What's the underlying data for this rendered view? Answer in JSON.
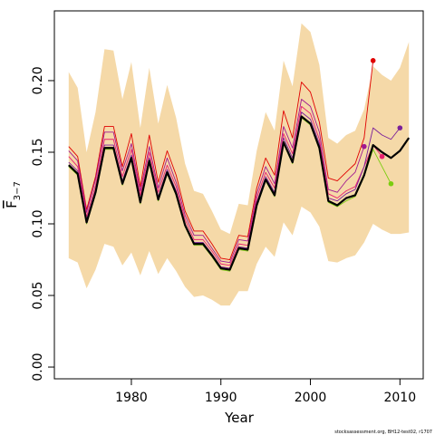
{
  "chart_data": {
    "type": "line",
    "xlabel": "Year",
    "ylabel": {
      "symbol": "F",
      "subscript": "3−7"
    },
    "footer": "stocksassessment.org, BH12-test02, r1707",
    "x": [
      1973,
      1974,
      1975,
      1976,
      1977,
      1978,
      1979,
      1980,
      1981,
      1982,
      1983,
      1984,
      1985,
      1986,
      1987,
      1988,
      1989,
      1990,
      1991,
      1992,
      1993,
      1994,
      1995,
      1996,
      1997,
      1998,
      1999,
      2000,
      2001,
      2002,
      2003,
      2004,
      2005,
      2006,
      2007,
      2008,
      2009,
      2010,
      2011
    ],
    "xlim": [
      1971.4,
      2012.6
    ],
    "xticks": [
      1980,
      1990,
      2000,
      2010
    ],
    "ylim": [
      -0.0082,
      0.2487
    ],
    "yticks": [
      {
        "value": 0,
        "label": "0.00"
      },
      {
        "value": 0.05,
        "label": "0.05"
      },
      {
        "value": 0.1,
        "label": "0.10"
      },
      {
        "value": 0.15,
        "label": "0.15"
      },
      {
        "value": 0.2,
        "label": "0.20"
      }
    ],
    "band": {
      "color": "#f5d9a8",
      "upper": [
        0.206,
        0.195,
        0.15,
        0.178,
        0.222,
        0.221,
        0.187,
        0.213,
        0.167,
        0.209,
        0.17,
        0.197,
        0.174,
        0.142,
        0.123,
        0.121,
        0.109,
        0.096,
        0.093,
        0.114,
        0.113,
        0.151,
        0.178,
        0.165,
        0.214,
        0.196,
        0.24,
        0.234,
        0.211,
        0.16,
        0.156,
        0.162,
        0.165,
        0.18,
        0.21,
        0.204,
        0.2,
        0.209,
        0.227
      ],
      "lower": [
        0.076,
        0.073,
        0.055,
        0.068,
        0.086,
        0.084,
        0.071,
        0.08,
        0.064,
        0.081,
        0.065,
        0.076,
        0.067,
        0.056,
        0.049,
        0.05,
        0.047,
        0.043,
        0.043,
        0.053,
        0.053,
        0.072,
        0.084,
        0.077,
        0.101,
        0.092,
        0.112,
        0.108,
        0.098,
        0.074,
        0.073,
        0.076,
        0.078,
        0.087,
        0.1,
        0.096,
        0.093,
        0.093,
        0.094
      ]
    },
    "series": [
      {
        "color": "#e00000",
        "end_marker": true,
        "values": [
          0.154,
          0.147,
          0.11,
          0.133,
          0.168,
          0.168,
          0.14,
          0.163,
          0.126,
          0.162,
          0.129,
          0.151,
          0.134,
          0.109,
          0.095,
          0.095,
          0.086,
          0.076,
          0.075,
          0.092,
          0.091,
          0.125,
          0.146,
          0.134,
          0.179,
          0.16,
          0.199,
          0.192,
          0.171,
          0.132,
          0.13,
          0.136,
          0.142,
          0.16,
          0.214,
          null,
          null,
          null,
          null
        ]
      },
      {
        "color": "#a01890",
        "end_marker": true,
        "values": [
          0.151,
          0.144,
          0.108,
          0.131,
          0.164,
          0.164,
          0.137,
          0.156,
          0.123,
          0.154,
          0.125,
          0.146,
          0.129,
          0.106,
          0.092,
          0.092,
          0.083,
          0.074,
          0.073,
          0.089,
          0.088,
          0.121,
          0.14,
          0.128,
          0.168,
          0.153,
          0.187,
          0.182,
          0.164,
          0.124,
          0.122,
          0.13,
          0.136,
          0.154,
          null,
          null,
          null,
          null,
          null
        ]
      },
      {
        "color": "#e8206e",
        "end_marker": true,
        "values": [
          0.147,
          0.14,
          0.105,
          0.127,
          0.159,
          0.159,
          0.133,
          0.152,
          0.12,
          0.15,
          0.122,
          0.141,
          0.126,
          0.103,
          0.089,
          0.089,
          0.081,
          0.072,
          0.071,
          0.086,
          0.085,
          0.118,
          0.136,
          0.125,
          0.163,
          0.149,
          0.182,
          0.177,
          0.159,
          0.121,
          0.118,
          0.123,
          0.126,
          0.14,
          0.155,
          0.147,
          null,
          null,
          null
        ]
      },
      {
        "color": "#7a1f9a",
        "end_marker": true,
        "values": [
          0.143,
          0.137,
          0.103,
          0.124,
          0.155,
          0.155,
          0.13,
          0.148,
          0.117,
          0.146,
          0.119,
          0.138,
          0.123,
          0.1,
          0.087,
          0.087,
          0.079,
          0.07,
          0.069,
          0.084,
          0.083,
          0.115,
          0.133,
          0.122,
          0.16,
          0.146,
          0.178,
          0.173,
          0.156,
          0.118,
          0.116,
          0.121,
          0.124,
          0.14,
          0.167,
          0.162,
          0.159,
          0.167,
          null
        ]
      },
      {
        "color": "#7ccd10",
        "end_marker": true,
        "values": [
          0.14,
          0.134,
          0.1,
          0.121,
          0.152,
          0.152,
          0.127,
          0.145,
          0.114,
          0.143,
          0.116,
          0.135,
          0.12,
          0.098,
          0.085,
          0.085,
          0.077,
          0.068,
          0.067,
          0.082,
          0.081,
          0.112,
          0.13,
          0.119,
          0.156,
          0.142,
          0.174,
          0.169,
          0.152,
          0.115,
          0.112,
          0.116,
          0.119,
          0.133,
          0.152,
          0.14,
          0.128,
          null,
          null
        ]
      },
      {
        "color": "#000000",
        "width": 2.2,
        "values": [
          0.141,
          0.135,
          0.101,
          0.122,
          0.153,
          0.153,
          0.128,
          0.146,
          0.115,
          0.144,
          0.117,
          0.136,
          0.121,
          0.099,
          0.086,
          0.086,
          0.078,
          0.069,
          0.068,
          0.083,
          0.082,
          0.113,
          0.131,
          0.12,
          0.157,
          0.143,
          0.175,
          0.17,
          0.153,
          0.116,
          0.113,
          0.118,
          0.12,
          0.134,
          0.155,
          0.15,
          0.146,
          0.151,
          0.16
        ]
      }
    ]
  }
}
